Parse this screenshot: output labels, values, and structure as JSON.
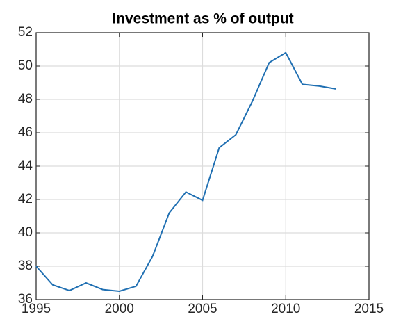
{
  "chart_data": {
    "type": "line",
    "title": "Investment as % of output",
    "x": [
      1995,
      1996,
      1997,
      1998,
      1999,
      2000,
      2001,
      2002,
      2003,
      2004,
      2005,
      2006,
      2007,
      2008,
      2009,
      2010,
      2011,
      2012,
      2013
    ],
    "series": [
      {
        "name": "Investment",
        "color": "#1f6fb2",
        "values": [
          38.0,
          36.88,
          36.54,
          37.0,
          36.6,
          36.5,
          36.8,
          38.6,
          41.2,
          42.45,
          41.95,
          45.1,
          45.88,
          47.9,
          50.2,
          50.8,
          48.9,
          48.8,
          48.63
        ]
      }
    ],
    "xlim": [
      1995,
      2015
    ],
    "xticks": [
      1995,
      2000,
      2005,
      2010,
      2015
    ],
    "ylim": [
      36,
      52
    ],
    "yticks": [
      36,
      38,
      40,
      42,
      44,
      46,
      48,
      50,
      52
    ],
    "grid": true
  }
}
